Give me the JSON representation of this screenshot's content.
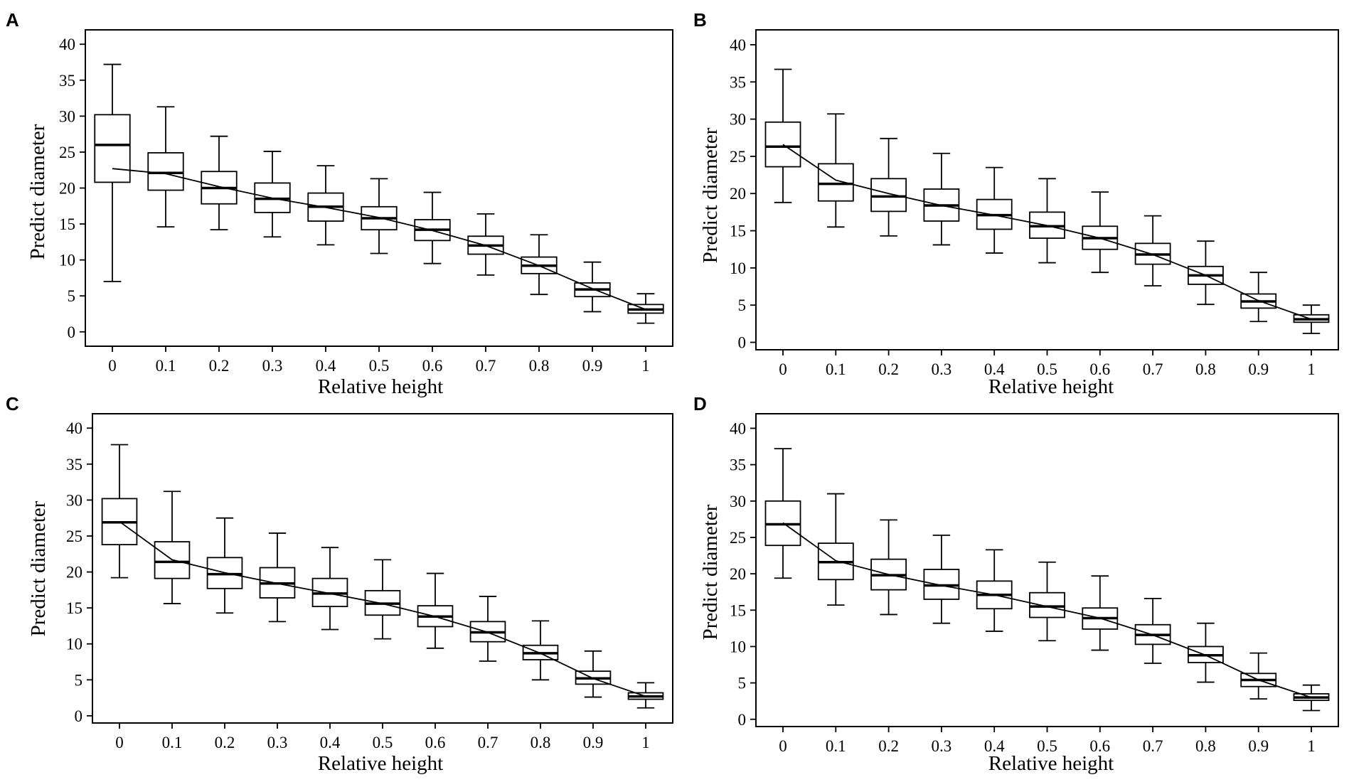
{
  "charts": [
    {
      "panel": "A",
      "chart_data": {
        "type": "box",
        "xlabel": "Relative height",
        "ylabel": "Predict diameter",
        "ylim": [
          -2,
          42
        ],
        "yticks": [
          0,
          5,
          10,
          15,
          20,
          25,
          30,
          35,
          40
        ],
        "categories": [
          "0",
          "0.1",
          "0.2",
          "0.3",
          "0.4",
          "0.5",
          "0.6",
          "0.7",
          "0.8",
          "0.9",
          "1"
        ],
        "boxes": [
          {
            "min": 7.0,
            "q1": 20.8,
            "median": 26.0,
            "q3": 30.2,
            "max": 37.2
          },
          {
            "min": 14.6,
            "q1": 19.7,
            "median": 22.1,
            "q3": 24.9,
            "max": 31.3
          },
          {
            "min": 14.2,
            "q1": 17.8,
            "median": 20.0,
            "q3": 22.3,
            "max": 27.2
          },
          {
            "min": 13.2,
            "q1": 16.6,
            "median": 18.5,
            "q3": 20.7,
            "max": 25.1
          },
          {
            "min": 12.1,
            "q1": 15.4,
            "median": 17.4,
            "q3": 19.3,
            "max": 23.1
          },
          {
            "min": 10.9,
            "q1": 14.2,
            "median": 15.8,
            "q3": 17.4,
            "max": 21.3
          },
          {
            "min": 9.5,
            "q1": 12.7,
            "median": 14.2,
            "q3": 15.6,
            "max": 19.4
          },
          {
            "min": 7.9,
            "q1": 10.8,
            "median": 12.0,
            "q3": 13.3,
            "max": 16.4
          },
          {
            "min": 5.2,
            "q1": 8.1,
            "median": 9.2,
            "q3": 10.4,
            "max": 13.5
          },
          {
            "min": 2.8,
            "q1": 4.9,
            "median": 5.9,
            "q3": 6.8,
            "max": 9.7
          },
          {
            "min": 1.2,
            "q1": 2.6,
            "median": 3.1,
            "q3": 3.8,
            "max": 5.3
          }
        ],
        "trend": [
          22.7,
          22.0,
          20.2,
          18.6,
          17.3,
          15.9,
          14.1,
          12.0,
          9.2,
          6.0,
          3.1
        ]
      }
    },
    {
      "panel": "B",
      "chart_data": {
        "type": "box",
        "xlabel": "Relative height",
        "ylabel": "Predict diameter",
        "ylim": [
          -1,
          42
        ],
        "yticks": [
          0,
          5,
          10,
          15,
          20,
          25,
          30,
          35,
          40
        ],
        "categories": [
          "0",
          "0.1",
          "0.2",
          "0.3",
          "0.4",
          "0.5",
          "0.6",
          "0.7",
          "0.8",
          "0.9",
          "1"
        ],
        "boxes": [
          {
            "min": 18.8,
            "q1": 23.6,
            "median": 26.3,
            "q3": 29.6,
            "max": 36.7
          },
          {
            "min": 15.5,
            "q1": 19.0,
            "median": 21.3,
            "q3": 24.0,
            "max": 30.7
          },
          {
            "min": 14.3,
            "q1": 17.6,
            "median": 19.6,
            "q3": 22.0,
            "max": 27.4
          },
          {
            "min": 13.1,
            "q1": 16.3,
            "median": 18.4,
            "q3": 20.6,
            "max": 25.4
          },
          {
            "min": 12.0,
            "q1": 15.2,
            "median": 17.1,
            "q3": 19.2,
            "max": 23.5
          },
          {
            "min": 10.7,
            "q1": 14.0,
            "median": 15.6,
            "q3": 17.5,
            "max": 22.0
          },
          {
            "min": 9.4,
            "q1": 12.5,
            "median": 14.0,
            "q3": 15.6,
            "max": 20.2
          },
          {
            "min": 7.6,
            "q1": 10.5,
            "median": 11.8,
            "q3": 13.3,
            "max": 17.0
          },
          {
            "min": 5.1,
            "q1": 7.8,
            "median": 9.0,
            "q3": 10.2,
            "max": 13.6
          },
          {
            "min": 2.8,
            "q1": 4.6,
            "median": 5.5,
            "q3": 6.5,
            "max": 9.4
          },
          {
            "min": 1.2,
            "q1": 2.7,
            "median": 3.1,
            "q3": 3.7,
            "max": 5.0
          }
        ],
        "trend": [
          26.6,
          21.8,
          20.0,
          18.4,
          17.1,
          15.7,
          14.0,
          11.8,
          9.0,
          5.6,
          3.1
        ]
      }
    },
    {
      "panel": "C",
      "chart_data": {
        "type": "box",
        "xlabel": "Relative height",
        "ylabel": "Predict diameter",
        "ylim": [
          -1,
          42
        ],
        "yticks": [
          0,
          5,
          10,
          15,
          20,
          25,
          30,
          35,
          40
        ],
        "categories": [
          "0",
          "0.1",
          "0.2",
          "0.3",
          "0.4",
          "0.5",
          "0.6",
          "0.7",
          "0.8",
          "0.9",
          "1"
        ],
        "boxes": [
          {
            "min": 19.2,
            "q1": 23.8,
            "median": 26.9,
            "q3": 30.2,
            "max": 37.7
          },
          {
            "min": 15.6,
            "q1": 19.1,
            "median": 21.4,
            "q3": 24.2,
            "max": 31.2
          },
          {
            "min": 14.3,
            "q1": 17.7,
            "median": 19.7,
            "q3": 22.0,
            "max": 27.5
          },
          {
            "min": 13.1,
            "q1": 16.4,
            "median": 18.4,
            "q3": 20.6,
            "max": 25.4
          },
          {
            "min": 12.0,
            "q1": 15.2,
            "median": 17.0,
            "q3": 19.1,
            "max": 23.4
          },
          {
            "min": 10.7,
            "q1": 14.0,
            "median": 15.6,
            "q3": 17.4,
            "max": 21.7
          },
          {
            "min": 9.4,
            "q1": 12.4,
            "median": 13.8,
            "q3": 15.3,
            "max": 19.8
          },
          {
            "min": 7.6,
            "q1": 10.3,
            "median": 11.6,
            "q3": 13.1,
            "max": 16.6
          },
          {
            "min": 5.0,
            "q1": 7.8,
            "median": 8.7,
            "q3": 9.8,
            "max": 13.2
          },
          {
            "min": 2.6,
            "q1": 4.4,
            "median": 5.2,
            "q3": 6.2,
            "max": 9.0
          },
          {
            "min": 1.1,
            "q1": 2.3,
            "median": 2.7,
            "q3": 3.2,
            "max": 4.6
          }
        ],
        "trend": [
          27.0,
          21.7,
          19.9,
          18.4,
          17.0,
          15.6,
          13.8,
          11.6,
          8.7,
          5.2,
          2.7
        ]
      }
    },
    {
      "panel": "D",
      "chart_data": {
        "type": "box",
        "xlabel": "Relative height",
        "ylabel": "Predict diameter",
        "ylim": [
          -1,
          42
        ],
        "yticks": [
          0,
          5,
          10,
          15,
          20,
          25,
          30,
          35,
          40
        ],
        "categories": [
          "0",
          "0.1",
          "0.2",
          "0.3",
          "0.4",
          "0.5",
          "0.6",
          "0.7",
          "0.8",
          "0.9",
          "1"
        ],
        "boxes": [
          {
            "min": 19.4,
            "q1": 23.9,
            "median": 26.8,
            "q3": 30.0,
            "max": 37.2
          },
          {
            "min": 15.7,
            "q1": 19.2,
            "median": 21.6,
            "q3": 24.2,
            "max": 31.0
          },
          {
            "min": 14.4,
            "q1": 17.8,
            "median": 19.8,
            "q3": 22.0,
            "max": 27.4
          },
          {
            "min": 13.2,
            "q1": 16.5,
            "median": 18.4,
            "q3": 20.6,
            "max": 25.3
          },
          {
            "min": 12.1,
            "q1": 15.2,
            "median": 17.1,
            "q3": 19.0,
            "max": 23.3
          },
          {
            "min": 10.8,
            "q1": 14.0,
            "median": 15.5,
            "q3": 17.4,
            "max": 21.6
          },
          {
            "min": 9.5,
            "q1": 12.4,
            "median": 13.9,
            "q3": 15.3,
            "max": 19.7
          },
          {
            "min": 7.7,
            "q1": 10.3,
            "median": 11.6,
            "q3": 13.0,
            "max": 16.6
          },
          {
            "min": 5.1,
            "q1": 7.8,
            "median": 8.8,
            "q3": 10.0,
            "max": 13.2
          },
          {
            "min": 2.8,
            "q1": 4.5,
            "median": 5.4,
            "q3": 6.3,
            "max": 9.1
          },
          {
            "min": 1.2,
            "q1": 2.6,
            "median": 3.0,
            "q3": 3.5,
            "max": 4.7
          }
        ],
        "trend": [
          27.0,
          21.8,
          19.9,
          18.4,
          17.1,
          15.5,
          13.9,
          11.6,
          8.8,
          5.4,
          3.0
        ]
      }
    }
  ]
}
